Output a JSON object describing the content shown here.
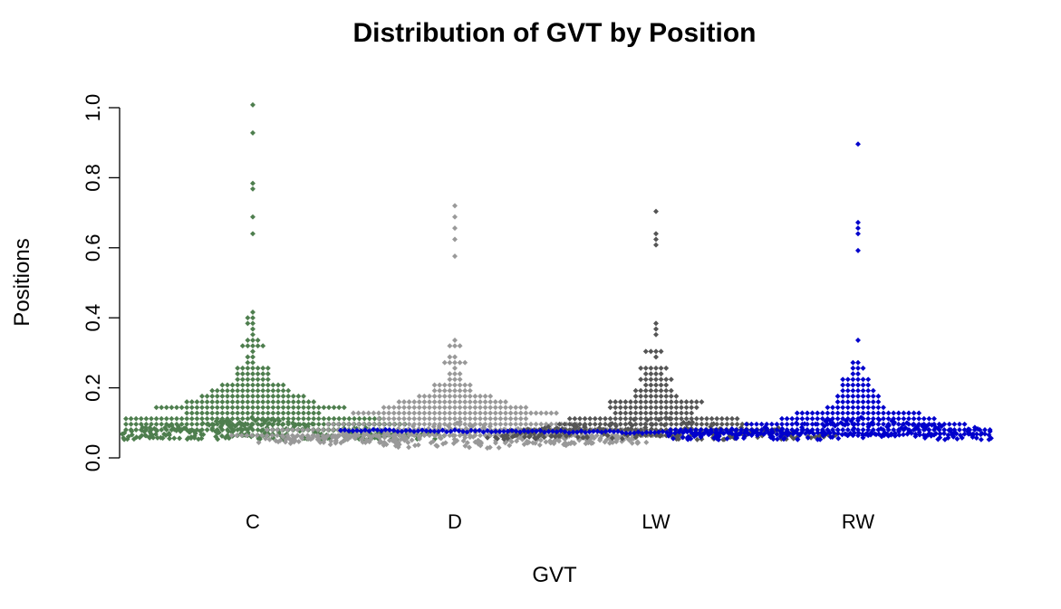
{
  "chart_data": {
    "type": "beeswarm",
    "title": "Distribution of GVT by Position",
    "xlabel": "GVT",
    "ylabel": "Positions",
    "ylim": [
      0,
      1
    ],
    "yticks": [
      "0.0",
      "0.2",
      "0.4",
      "0.6",
      "0.8",
      "1.0"
    ],
    "grid": false,
    "legend": "none",
    "categories": [
      "C",
      "D",
      "LW",
      "RW"
    ],
    "series": [
      {
        "category": "C",
        "color": "#4e7e4e",
        "n": 650,
        "mode": 0.07,
        "tail_scale": 0.13,
        "max_values": [
          1.0,
          0.925,
          0.785,
          0.77,
          0.685,
          0.635
        ]
      },
      {
        "category": "D",
        "color": "#999999",
        "n": 700,
        "mode": 0.06,
        "tail_scale": 0.1,
        "max_values": [
          0.72,
          0.69,
          0.66,
          0.62,
          0.58
        ]
      },
      {
        "category": "LW",
        "color": "#555555",
        "n": 420,
        "mode": 0.07,
        "tail_scale": 0.12,
        "max_values": [
          0.7,
          0.64,
          0.63,
          0.61
        ]
      },
      {
        "category": "RW",
        "color": "#0000cc",
        "n": 430,
        "mode": 0.07,
        "tail_scale": 0.1,
        "max_values": [
          0.9,
          0.665,
          0.66,
          0.64,
          0.585
        ]
      }
    ]
  }
}
